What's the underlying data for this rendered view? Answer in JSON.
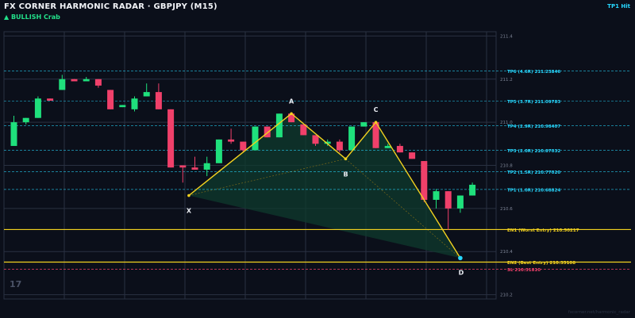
{
  "header": {
    "title": "FX CORNER HARMONIC RADAR  ·  GBPJPY (M15)",
    "bias": "▲ BULLISH  Crab",
    "status": "TP1 Hit"
  },
  "logo": "17",
  "credit": "fxcorner.net/harmonic_radar",
  "colors": {
    "bg": "#0b0f1a",
    "grid": "#2a3142",
    "bull": "#1fe07c",
    "bear": "#f0406a",
    "pattern": "#f2d11f",
    "tp": "#27d8ff",
    "entry": "#f2d11f",
    "sl": "#f0406a",
    "fill": "#0f3b2e"
  },
  "chart_data": {
    "type": "candlestick",
    "ylim": [
      210.18,
      211.42
    ],
    "yticks": [
      "210.2",
      "210.4",
      "210.6",
      "210.8",
      "211.0",
      "211.2",
      "211.4"
    ],
    "candles": [
      {
        "o": 210.89,
        "h": 211.03,
        "l": 210.89,
        "c": 211.0
      },
      {
        "o": 211.0,
        "h": 211.02,
        "l": 210.99,
        "c": 211.02
      },
      {
        "o": 211.02,
        "h": 211.12,
        "l": 211.02,
        "c": 211.11
      },
      {
        "o": 211.11,
        "h": 211.11,
        "l": 211.1,
        "c": 211.1
      },
      {
        "o": 211.15,
        "h": 211.22,
        "l": 211.15,
        "c": 211.2
      },
      {
        "o": 211.2,
        "h": 211.2,
        "l": 211.19,
        "c": 211.19
      },
      {
        "o": 211.19,
        "h": 211.21,
        "l": 211.19,
        "c": 211.2
      },
      {
        "o": 211.2,
        "h": 211.2,
        "l": 211.16,
        "c": 211.17
      },
      {
        "o": 211.15,
        "h": 211.15,
        "l": 211.06,
        "c": 211.06
      },
      {
        "o": 211.07,
        "h": 211.08,
        "l": 211.07,
        "c": 211.08
      },
      {
        "o": 211.06,
        "h": 211.12,
        "l": 211.05,
        "c": 211.11
      },
      {
        "o": 211.12,
        "h": 211.18,
        "l": 211.12,
        "c": 211.14
      },
      {
        "o": 211.14,
        "h": 211.18,
        "l": 211.06,
        "c": 211.06
      },
      {
        "o": 211.06,
        "h": 211.06,
        "l": 210.79,
        "c": 210.79
      },
      {
        "o": 210.8,
        "h": 210.8,
        "l": 210.72,
        "c": 210.79
      },
      {
        "o": 210.79,
        "h": 210.84,
        "l": 210.78,
        "c": 210.78
      },
      {
        "o": 210.78,
        "h": 210.84,
        "l": 210.75,
        "c": 210.81
      },
      {
        "o": 210.81,
        "h": 210.92,
        "l": 210.81,
        "c": 210.92
      },
      {
        "o": 210.92,
        "h": 210.97,
        "l": 210.9,
        "c": 210.91
      },
      {
        "o": 210.91,
        "h": 210.91,
        "l": 210.86,
        "c": 210.87
      },
      {
        "o": 210.87,
        "h": 210.98,
        "l": 210.87,
        "c": 210.98
      },
      {
        "o": 210.98,
        "h": 210.98,
        "l": 210.93,
        "c": 210.93
      },
      {
        "o": 210.93,
        "h": 211.04,
        "l": 210.93,
        "c": 211.04
      },
      {
        "o": 211.04,
        "h": 211.04,
        "l": 211.0,
        "c": 211.0
      },
      {
        "o": 210.99,
        "h": 210.99,
        "l": 210.94,
        "c": 210.94
      },
      {
        "o": 210.94,
        "h": 210.94,
        "l": 210.89,
        "c": 210.9
      },
      {
        "o": 210.9,
        "h": 210.92,
        "l": 210.89,
        "c": 210.91
      },
      {
        "o": 210.91,
        "h": 210.92,
        "l": 210.86,
        "c": 210.87
      },
      {
        "o": 210.87,
        "h": 210.98,
        "l": 210.87,
        "c": 210.98
      },
      {
        "o": 210.98,
        "h": 211.0,
        "l": 210.98,
        "c": 211.0
      },
      {
        "o": 211.0,
        "h": 211.0,
        "l": 210.88,
        "c": 210.88
      },
      {
        "o": 210.88,
        "h": 210.9,
        "l": 210.88,
        "c": 210.89
      },
      {
        "o": 210.89,
        "h": 210.9,
        "l": 210.86,
        "c": 210.86
      },
      {
        "o": 210.86,
        "h": 210.86,
        "l": 210.83,
        "c": 210.83
      },
      {
        "o": 210.82,
        "h": 210.82,
        "l": 210.63,
        "c": 210.64
      },
      {
        "o": 210.64,
        "h": 210.69,
        "l": 210.6,
        "c": 210.68
      },
      {
        "o": 210.68,
        "h": 210.68,
        "l": 210.5,
        "c": 210.6
      },
      {
        "o": 210.6,
        "h": 210.66,
        "l": 210.58,
        "c": 210.66
      },
      {
        "o": 210.66,
        "h": 210.72,
        "l": 210.66,
        "c": 210.71
      }
    ],
    "pattern_points": [
      {
        "label": "X",
        "i": 14.5,
        "y": 210.66
      },
      {
        "label": "A",
        "i": 23.0,
        "y": 211.04
      },
      {
        "label": "B",
        "i": 27.5,
        "y": 210.83
      },
      {
        "label": "C",
        "i": 30.0,
        "y": 211.0
      },
      {
        "label": "D",
        "i": 37.0,
        "y": 210.37
      }
    ],
    "levels": [
      {
        "kind": "tp",
        "label": "TP6 (4.6R)  211.23846",
        "y": 211.23846
      },
      {
        "kind": "tp",
        "label": "TP5 (3.7R)  211.09783",
        "y": 211.09783
      },
      {
        "kind": "tp",
        "label": "TP4 (2.9R)  210.98407",
        "y": 210.98407
      },
      {
        "kind": "tp",
        "label": "TP3 (2.0R)  210.87032",
        "y": 210.87032
      },
      {
        "kind": "tp",
        "label": "TP2 (1.5R)  210.77020",
        "y": 210.7702
      },
      {
        "kind": "tp",
        "label": "TP1 (1.0R)  210.68824",
        "y": 210.68824
      },
      {
        "kind": "entry",
        "label": "EN1 (Worst Entry)  210.50217",
        "y": 210.50217
      },
      {
        "kind": "entry",
        "label": "EN2 (Best Entry)  210.35108",
        "y": 210.35108
      },
      {
        "kind": "sl",
        "label": "SL  210.31810",
        "y": 210.3181
      }
    ]
  }
}
